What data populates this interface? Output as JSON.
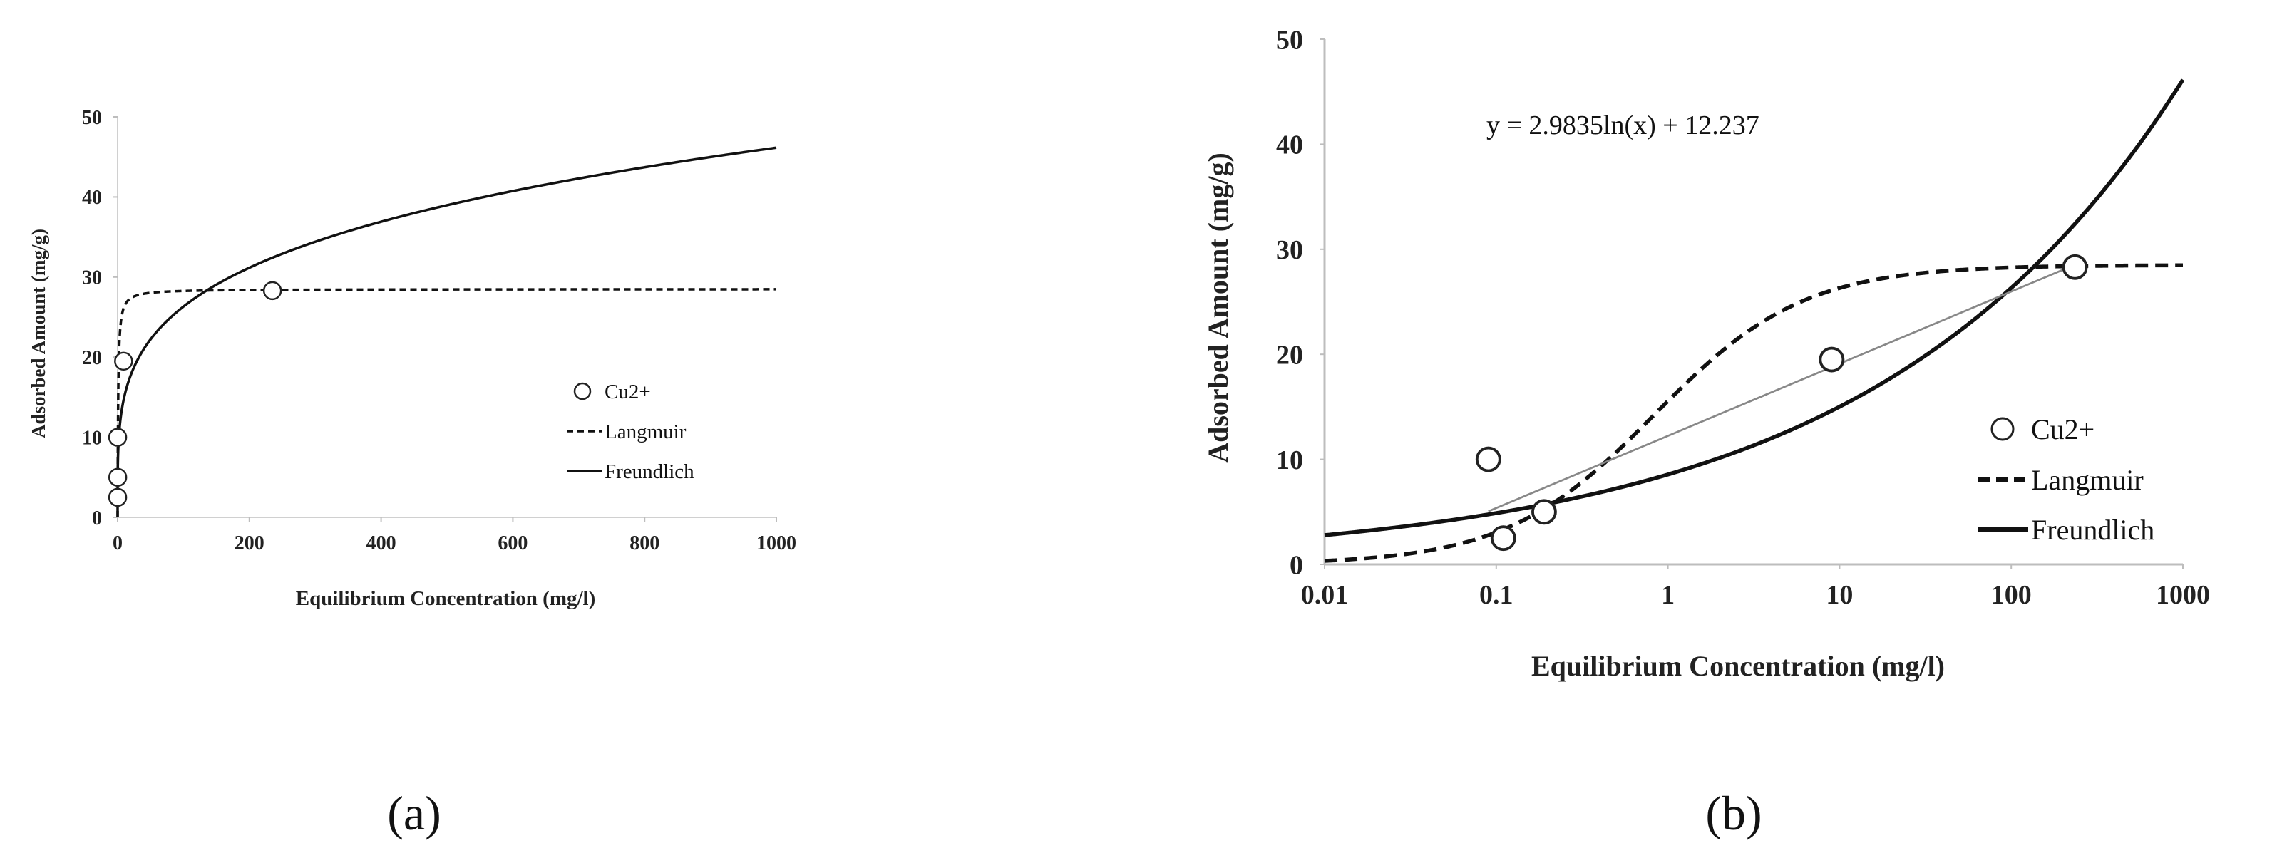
{
  "chart_data": [
    {
      "type": "scatter",
      "panel_label": "(a)",
      "xscale": "linear",
      "xlim": [
        0,
        1000
      ],
      "ylim": [
        0,
        50
      ],
      "xticks": [
        0,
        200,
        400,
        600,
        800,
        1000
      ],
      "yticks": [
        0,
        10,
        20,
        30,
        40,
        50
      ],
      "xlabel": "Equilibrium Concentration (mg/l)",
      "ylabel": "Adsorbed Amount (mg/g)",
      "legend_position": "center-right",
      "series": [
        {
          "name": "Cu2+",
          "style": "circle-marker",
          "x": [
            0.11,
            0.19,
            0.09,
            9,
            235
          ],
          "y": [
            2.5,
            5.0,
            10.0,
            19.5,
            28.3
          ]
        },
        {
          "name": "Langmuir",
          "style": "dashed",
          "model": "langmuir",
          "qmax": 28.5,
          "K": 1.2
        },
        {
          "name": "Freundlich",
          "style": "solid",
          "model": "freundlich",
          "Kf": 8.56,
          "n": 4.1
        }
      ],
      "grid": false
    },
    {
      "type": "scatter",
      "panel_label": "(b)",
      "xscale": "log",
      "xlim": [
        0.01,
        1000
      ],
      "ylim": [
        0,
        50
      ],
      "xticks": [
        0.01,
        0.1,
        1,
        10,
        100,
        1000
      ],
      "xtick_labels": [
        "0.01",
        "0.1",
        "1",
        "10",
        "100",
        "1000"
      ],
      "yticks": [
        0,
        10,
        20,
        30,
        40,
        50
      ],
      "xlabel": "Equilibrium Concentration (mg/l)",
      "ylabel": "Adsorbed Amount (mg/g)",
      "legend_position": "center-right",
      "annotation": "y = 2.9835ln(x) + 12.237",
      "series": [
        {
          "name": "Cu2+",
          "style": "circle-marker",
          "x": [
            0.09,
            0.11,
            0.19,
            9,
            235
          ],
          "y": [
            10.0,
            2.5,
            5.0,
            19.5,
            28.3
          ]
        },
        {
          "name": "Langmuir",
          "style": "dashed",
          "model": "langmuir",
          "qmax": 28.5,
          "K": 1.2
        },
        {
          "name": "Freundlich",
          "style": "solid",
          "model": "freundlich",
          "Kf": 8.56,
          "n": 4.1
        },
        {
          "name": "Trendline",
          "style": "thin-gray",
          "model": "log-linear",
          "a": 2.9835,
          "b": 12.237,
          "x_range": [
            0.09,
            235
          ]
        }
      ],
      "grid": false
    }
  ]
}
